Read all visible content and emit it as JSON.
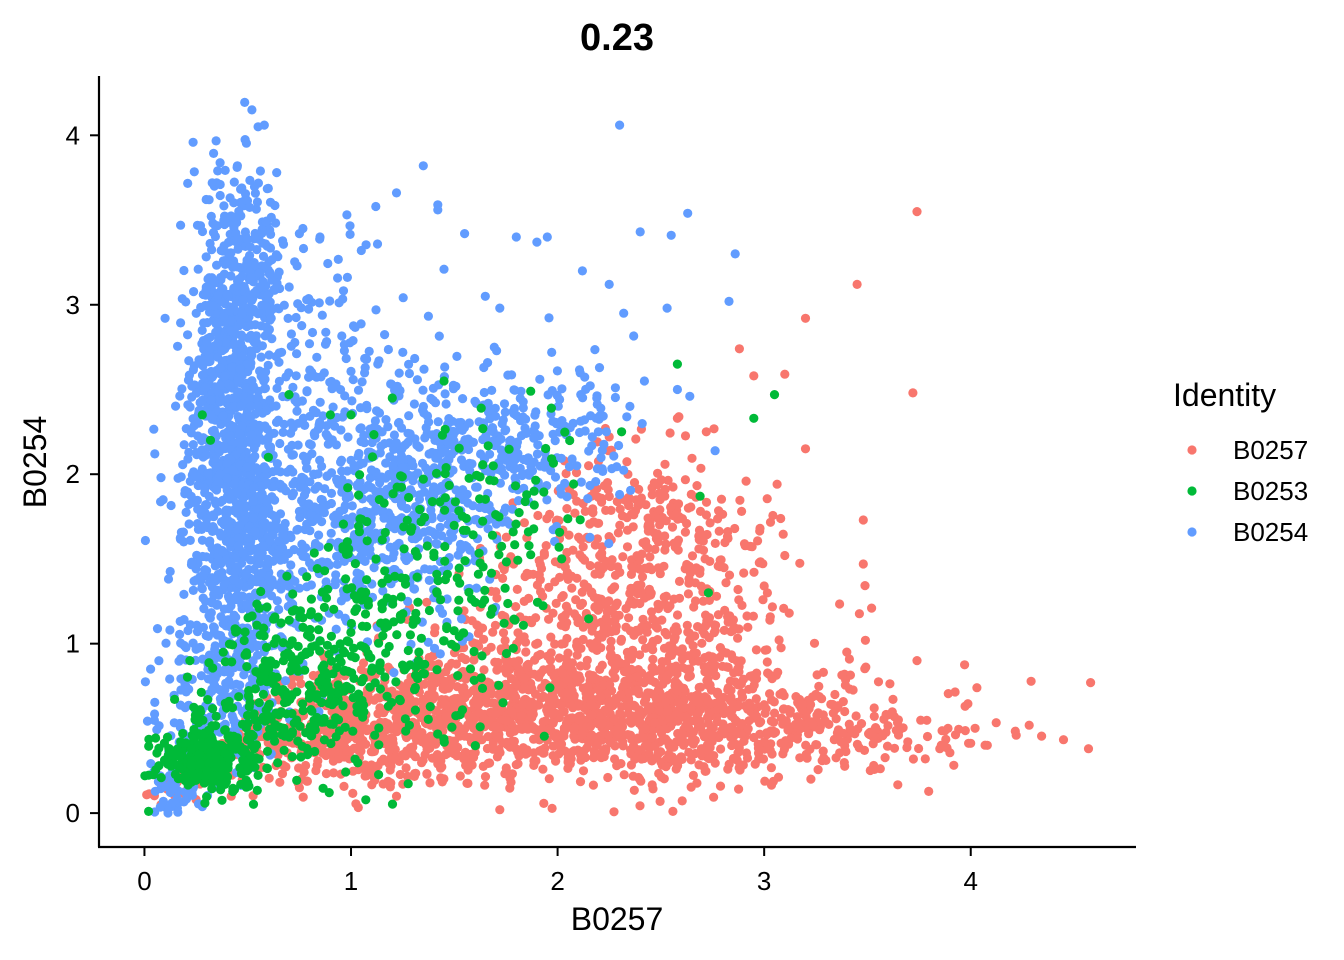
{
  "chart_data": {
    "type": "scatter",
    "title": "0.23",
    "xlabel": "B0257",
    "ylabel": "B0254",
    "xlim": [
      -0.22,
      4.8
    ],
    "ylim": [
      -0.2,
      4.35
    ],
    "x_ticks": [
      0,
      1,
      2,
      3,
      4
    ],
    "y_ticks": [
      0,
      1,
      2,
      3,
      4
    ],
    "grid": false,
    "legend": {
      "title": "Identity",
      "placement": "right",
      "entries": [
        "B0257",
        "B0253",
        "B0254"
      ]
    },
    "series": [
      {
        "name": "B0257",
        "color": "#F8766D",
        "points": [
          [
            3.74,
            3.55
          ],
          [
            3.45,
            3.12
          ],
          [
            3.2,
            2.92
          ],
          [
            3.72,
            2.48
          ],
          [
            2.88,
            2.74
          ],
          [
            2.95,
            2.58
          ],
          [
            3.1,
            2.59
          ],
          [
            3.2,
            2.15
          ],
          [
            4.58,
            0.77
          ],
          [
            4.57,
            0.38
          ],
          [
            4.22,
            0.46
          ],
          [
            4.08,
            0.4
          ],
          [
            4.03,
            0.74
          ],
          [
            3.89,
            0.5
          ],
          [
            3.85,
            0.38
          ],
          [
            3.48,
            1.73
          ],
          [
            3.48,
            1.47
          ],
          [
            3.52,
            1.21
          ],
          [
            3.49,
            1.02
          ],
          [
            3.74,
            0.9
          ],
          [
            3.78,
            0.32
          ],
          [
            3.1,
            1.52
          ],
          [
            3.0,
            1.34
          ],
          [
            2.85,
            1.08
          ],
          [
            3.4,
            0.95
          ],
          [
            2.58,
            2.33
          ],
          [
            2.72,
            2.25
          ],
          [
            2.25,
            2.22
          ],
          [
            2.15,
            2.05
          ],
          [
            1.72,
            0.02
          ],
          [
            1.95,
            0.43
          ],
          [
            1.4,
            0.93
          ],
          [
            1.22,
            0.1
          ],
          [
            0.75,
            0.15
          ],
          [
            0.42,
            0.1
          ],
          [
            0.35,
            0.2
          ],
          [
            0.08,
            0.05
          ],
          [
            0.25,
            0.08
          ],
          [
            3.0,
            0.64
          ],
          [
            3.25,
            0.7
          ],
          [
            2.8,
            0.95
          ],
          [
            2.9,
            0.79
          ],
          [
            3.6,
            0.58
          ],
          [
            3.65,
            0.55
          ]
        ],
        "clusters": [
          {
            "cx": 1.55,
            "cy": 0.58,
            "sx": 0.55,
            "sy": 0.18,
            "n": 950
          },
          {
            "cx": 2.55,
            "cy": 0.55,
            "sx": 0.42,
            "sy": 0.18,
            "n": 520
          },
          {
            "cx": 3.35,
            "cy": 0.48,
            "sx": 0.38,
            "sy": 0.12,
            "n": 170
          },
          {
            "cx": 2.25,
            "cy": 1.15,
            "sx": 0.38,
            "sy": 0.33,
            "n": 520
          },
          {
            "cx": 2.45,
            "cy": 1.75,
            "sx": 0.25,
            "sy": 0.22,
            "n": 170
          },
          {
            "cx": 0.85,
            "cy": 0.38,
            "sx": 0.3,
            "sy": 0.11,
            "n": 200
          },
          {
            "cx": 2.85,
            "cy": 1.0,
            "sx": 0.25,
            "sy": 0.3,
            "n": 80
          }
        ]
      },
      {
        "name": "B0253",
        "color": "#00BA38",
        "points": [
          [
            0.02,
            0.01
          ],
          [
            0.07,
            0.28
          ],
          [
            0.12,
            0.37
          ],
          [
            0.18,
            0.35
          ],
          [
            0.22,
            0.9
          ],
          [
            0.32,
            2.2
          ],
          [
            0.28,
            2.35
          ],
          [
            1.0,
            2.35
          ],
          [
            0.9,
            2.35
          ],
          [
            1.2,
            2.45
          ],
          [
            1.87,
            2.49
          ],
          [
            2.58,
            2.65
          ],
          [
            3.05,
            2.47
          ],
          [
            2.95,
            2.33
          ],
          [
            2.69,
            1.87
          ],
          [
            2.73,
            1.3
          ],
          [
            1.45,
            2.55
          ],
          [
            0.7,
            2.47
          ],
          [
            0.6,
            2.1
          ],
          [
            1.63,
            2.39
          ],
          [
            1.97,
            2.39
          ],
          [
            2.31,
            2.25
          ],
          [
            2.02,
            1.5
          ]
        ],
        "clusters": [
          {
            "cx": 0.32,
            "cy": 0.32,
            "sx": 0.12,
            "sy": 0.09,
            "n": 260
          },
          {
            "cx": 0.85,
            "cy": 0.85,
            "sx": 0.28,
            "sy": 0.28,
            "n": 270
          },
          {
            "cx": 1.35,
            "cy": 1.3,
            "sx": 0.3,
            "sy": 0.35,
            "n": 170
          },
          {
            "cx": 0.55,
            "cy": 0.6,
            "sx": 0.22,
            "sy": 0.22,
            "n": 110
          },
          {
            "cx": 1.6,
            "cy": 1.85,
            "sx": 0.3,
            "sy": 0.25,
            "n": 60
          }
        ]
      },
      {
        "name": "B0254",
        "color": "#619CFF",
        "points": [
          [
            0.52,
            4.15
          ],
          [
            0.55,
            4.05
          ],
          [
            0.58,
            4.06
          ],
          [
            2.3,
            4.06
          ],
          [
            1.35,
            3.82
          ],
          [
            1.22,
            3.66
          ],
          [
            1.42,
            3.59
          ],
          [
            1.42,
            3.56
          ],
          [
            2.63,
            3.54
          ],
          [
            0.98,
            3.53
          ],
          [
            1.12,
            3.58
          ],
          [
            2.4,
            3.43
          ],
          [
            2.55,
            3.41
          ],
          [
            1.55,
            3.42
          ],
          [
            1.8,
            3.4
          ],
          [
            1.95,
            3.4
          ],
          [
            2.86,
            3.3
          ],
          [
            1.45,
            3.21
          ],
          [
            2.12,
            3.2
          ],
          [
            2.25,
            3.12
          ],
          [
            0.1,
            2.92
          ],
          [
            0.05,
            2.12
          ],
          [
            0.08,
            1.98
          ],
          [
            0.03,
            0.85
          ],
          [
            0.2,
            0.8
          ],
          [
            1.9,
            3.37
          ],
          [
            1.65,
            3.05
          ],
          [
            1.72,
            2.98
          ],
          [
            2.53,
            2.98
          ],
          [
            2.83,
            3.02
          ],
          [
            2.32,
            2.95
          ],
          [
            2.58,
            2.5
          ],
          [
            2.64,
            2.46
          ],
          [
            2.42,
            2.55
          ],
          [
            2.28,
            2.51
          ],
          [
            2.19,
            2.45
          ],
          [
            2.35,
            2.4
          ],
          [
            1.6,
            2.43
          ],
          [
            1.3,
            2.05
          ],
          [
            1.05,
            3.32
          ],
          [
            0.85,
            3.4
          ],
          [
            0.75,
            3.42
          ],
          [
            0.64,
            3.78
          ],
          [
            0.45,
            3.82
          ],
          [
            0.35,
            3.72
          ]
        ],
        "clusters": [
          {
            "cx": 0.42,
            "cy": 2.55,
            "sx": 0.1,
            "sy": 0.55,
            "n": 650
          },
          {
            "cx": 0.45,
            "cy": 1.55,
            "sx": 0.13,
            "sy": 0.45,
            "n": 520
          },
          {
            "cx": 0.35,
            "cy": 0.65,
            "sx": 0.15,
            "sy": 0.28,
            "n": 200
          },
          {
            "cx": 1.05,
            "cy": 1.75,
            "sx": 0.35,
            "sy": 0.35,
            "n": 600
          },
          {
            "cx": 1.55,
            "cy": 2.2,
            "sx": 0.35,
            "sy": 0.28,
            "n": 330
          },
          {
            "cx": 0.75,
            "cy": 2.75,
            "sx": 0.25,
            "sy": 0.35,
            "n": 140
          },
          {
            "cx": 0.5,
            "cy": 3.3,
            "sx": 0.1,
            "sy": 0.28,
            "n": 130
          },
          {
            "cx": 0.12,
            "cy": 0.15,
            "sx": 0.06,
            "sy": 0.08,
            "n": 40
          },
          {
            "cx": 1.9,
            "cy": 2.2,
            "sx": 0.22,
            "sy": 0.18,
            "n": 90
          }
        ]
      }
    ]
  }
}
